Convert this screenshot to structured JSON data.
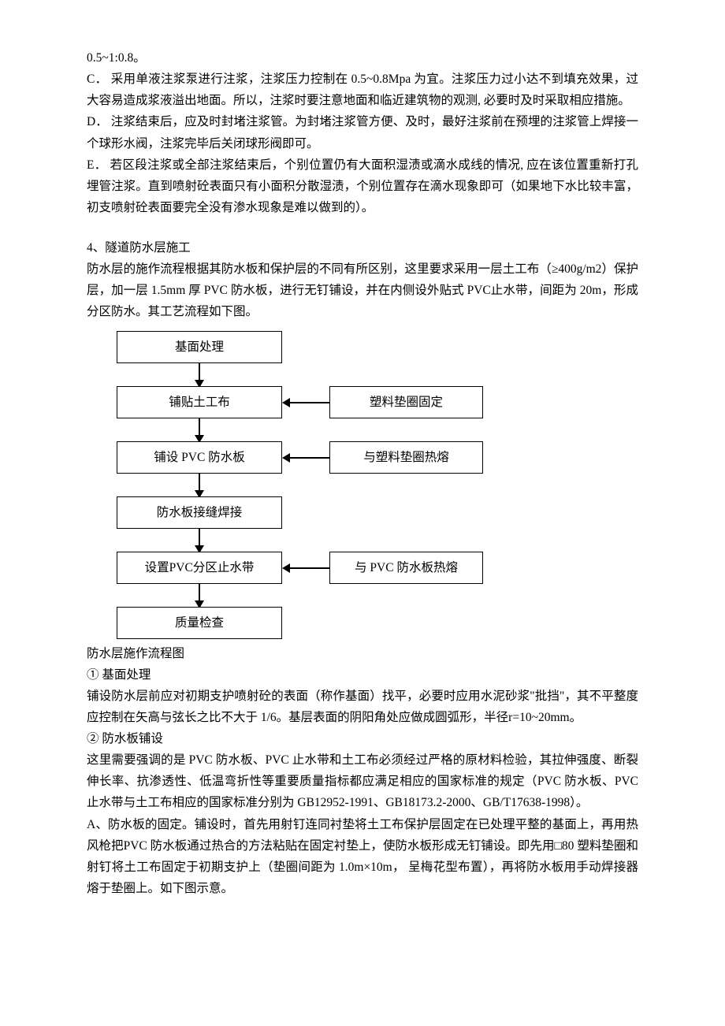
{
  "text": {
    "top_line": "0.5~1:0.8。",
    "c": "C．  采用单液注浆泵进行注浆，注浆压力控制在 0.5~0.8Mpa 为宜。注浆压力过小达不到填充效果，过大容易造成浆液溢出地面。所以，注浆时要注意地面和临近建筑物的观测,  必要时及时采取相应措施。",
    "d": "D．  注浆结束后，应及时封堵注浆管。为封堵注浆管方便、及时，最好注浆前在预埋的注浆管上焊接一个球形水阀，注浆完毕后关闭球形阀即可。",
    "e": "E．  若区段注浆或全部注浆结束后，个别位置仍有大面积湿渍或滴水成线的情况,  应在该位置重新打孔埋管注浆。直到喷射砼表面只有小面积分散湿渍，个别位置存在滴水现象即可（如果地下水比较丰富，初支喷射砼表面要完全没有渗水现象是难以做到的）。",
    "section4_title": "4、隧道防水层施工",
    "section4_intro": "防水层的施作流程根据其防水板和保护层的不同有所区别，这里要求采用一层土工布（≥400g/m2）保护层，加一层 1.5mm 厚 PVC 防水板，进行无钉铺设，并在内侧设外贴式 PVC止水带，间距为 20m，形成分区防水。其工艺流程如下图。",
    "caption": "防水层施作流程图",
    "p1_title": "① 基面处理",
    "p1": "铺设防水层前应对初期支护喷射砼的表面（称作基面）找平，必要时应用水泥砂浆\"批挡\"，其不平整度应控制在矢高与弦长之比不大于 1/6。基层表面的阴阳角处应做成圆弧形，半径r=10~20mm。",
    "p2_title": "② 防水板铺设",
    "p2a": "这里需要强调的是 PVC 防水板、PVC 止水带和土工布必须经过严格的原材料检验，其拉伸强度、断裂伸长率、抗渗透性、低温弯折性等重要质量指标都应满足相应的国家标准的规定（PVC 防水板、PVC 止水带与土工布相应的国家标准分别为 GB12952-1991、GB18173.2-2000、GB/T17638-1998）。",
    "p2b": "A、防水板的固定。铺设时，首先用射钉连同衬垫将土工布保护层固定在已处理平整的基面上，再用热风枪把PVC 防水板通过热合的方法粘贴在固定衬垫上，使防水板形成无钉铺设。即先用□80 塑料垫圈和射钉将土工布固定于初期支护上（垫圈间距为 1.0m×10m，  呈梅花型布置），再将防水板用手动焊接器熔于垫圈上。如下图示意。"
  },
  "flowchart": {
    "type": "flowchart",
    "box_border_color": "#000000",
    "box_border_width": 1.5,
    "box_bg": "#ffffff",
    "arrow_color": "#000000",
    "font_size": 15.5,
    "left_box_width": 210,
    "right_box_width": 195,
    "gap_width": 60,
    "nodes": [
      {
        "id": "n1",
        "col": "left",
        "label": "基面处理"
      },
      {
        "id": "n2",
        "col": "left",
        "label": "铺贴土工布"
      },
      {
        "id": "n2r",
        "col": "right",
        "label": "塑料垫圈固定"
      },
      {
        "id": "n3",
        "col": "left",
        "label": "铺设 PVC 防水板"
      },
      {
        "id": "n3r",
        "col": "right",
        "label": "与塑料垫圈热熔"
      },
      {
        "id": "n4",
        "col": "left",
        "label": "防水板接缝焊接"
      },
      {
        "id": "n5",
        "col": "left",
        "label": "设置PVC分区止水带"
      },
      {
        "id": "n5r",
        "col": "right",
        "label": "与 PVC 防水板热熔"
      },
      {
        "id": "n6",
        "col": "left",
        "label": "质量检查"
      }
    ],
    "edges_down": [
      "n1-n2",
      "n2-n3",
      "n3-n4",
      "n4-n5",
      "n5-n6"
    ],
    "edges_left": [
      "n2r-n2",
      "n3r-n3",
      "n5r-n5"
    ]
  }
}
